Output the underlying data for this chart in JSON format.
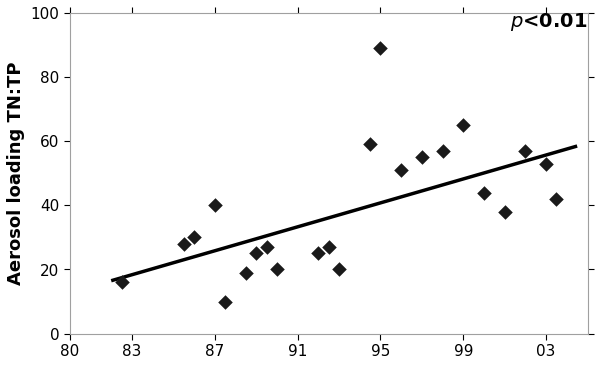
{
  "x_data": [
    82.5,
    85.5,
    86.0,
    87.0,
    87.5,
    88.5,
    89.0,
    89.5,
    90.0,
    92.0,
    92.5,
    93.0,
    94.5,
    95.0,
    96.0,
    97.0,
    98.0,
    99.0,
    100.0,
    101.0,
    102.0,
    103.0,
    103.5
  ],
  "y_data": [
    16.0,
    28.0,
    30.0,
    40.0,
    10.0,
    19.0,
    25.0,
    27.0,
    20.0,
    25.0,
    27.0,
    20.0,
    59.0,
    89.0,
    51.0,
    55.0,
    57.0,
    65.0,
    44.0,
    38.0,
    57.0,
    53.0,
    42.0
  ],
  "trendline_x": [
    82.0,
    104.5
  ],
  "trendline_y": [
    16.5,
    58.5
  ],
  "xlabel_tick_vals": [
    80,
    83,
    87,
    91,
    95,
    99,
    103
  ],
  "xlabel_tick_labels": [
    "80",
    "83",
    "87",
    "91",
    "95",
    "99",
    "03"
  ],
  "ylabel": "Aerosol loading TN:TP",
  "ylim": [
    0,
    100
  ],
  "xlim": [
    80,
    105
  ],
  "yticks": [
    0,
    20,
    40,
    60,
    80,
    100
  ],
  "marker_color": "#1a1a1a",
  "line_color": "#000000",
  "background_color": "#ffffff",
  "plot_bg_color": "#ffffff",
  "spine_color": "#a0a0a0",
  "label_fontsize": 13,
  "tick_fontsize": 11,
  "annotation_fontsize": 14
}
